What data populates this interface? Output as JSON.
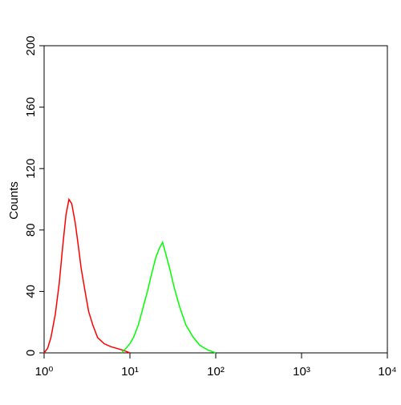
{
  "chart_data": {
    "type": "line",
    "y_label": "Counts",
    "xscale": "log",
    "xlim": [
      1,
      10000
    ],
    "ylim": [
      0,
      200
    ],
    "xticks": [
      {
        "value": 1,
        "label": "10⁰"
      },
      {
        "value": 10,
        "label": "10¹"
      },
      {
        "value": 100,
        "label": "10²"
      },
      {
        "value": 1000,
        "label": "10³"
      },
      {
        "value": 10000,
        "label": "10⁴"
      }
    ],
    "yticks": [
      0,
      40,
      80,
      120,
      160,
      200
    ],
    "series": [
      {
        "color": "#ff0000",
        "x": [
          1.0,
          1.1,
          1.2,
          1.35,
          1.5,
          1.65,
          1.8,
          1.95,
          2.1,
          2.3,
          2.5,
          2.7,
          3.0,
          3.3,
          3.7,
          4.2,
          5,
          6,
          7,
          8,
          9,
          10
        ],
        "values": [
          0,
          3,
          10,
          25,
          45,
          70,
          90,
          100,
          97,
          85,
          70,
          55,
          40,
          27,
          18,
          10,
          6,
          4,
          3,
          2,
          1,
          0
        ]
      },
      {
        "color": "#00ff00",
        "x": [
          8,
          9,
          10,
          11,
          12.5,
          14,
          16,
          18,
          20,
          22,
          24,
          26,
          29,
          33,
          38,
          45,
          55,
          65,
          80,
          100
        ],
        "values": [
          0,
          3,
          6,
          10,
          18,
          28,
          40,
          52,
          62,
          68,
          72,
          65,
          55,
          42,
          30,
          18,
          10,
          5,
          2,
          0
        ]
      }
    ]
  }
}
